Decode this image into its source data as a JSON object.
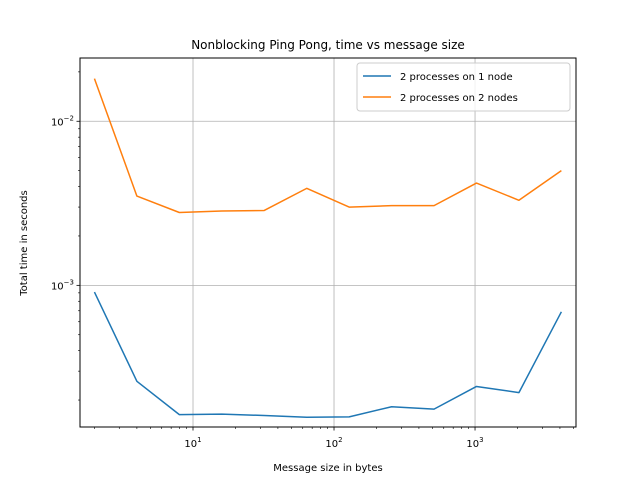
{
  "chart_data": {
    "type": "line",
    "title": "Nonblocking Ping Pong, time vs message size",
    "xlabel": "Message size in bytes",
    "ylabel": "Total time in seconds",
    "x_scale": "log",
    "y_scale": "log",
    "xlim": [
      1.58,
      5200
    ],
    "ylim": [
      0.000137,
      0.0243
    ],
    "x_ticks": [
      {
        "value": 10,
        "label": "10^1"
      },
      {
        "value": 100,
        "label": "10^2"
      },
      {
        "value": 1000,
        "label": "10^3"
      }
    ],
    "y_ticks": [
      {
        "value": 0.001,
        "label": "10^-3"
      },
      {
        "value": 0.01,
        "label": "10^-2"
      }
    ],
    "grid": true,
    "legend_position": "top-right",
    "x": [
      2,
      4,
      8,
      16,
      32,
      64,
      128,
      256,
      512,
      1024,
      2048,
      4096
    ],
    "series": [
      {
        "name": "2 processes on 1 node",
        "color": "#1f77b4",
        "values": [
          0.00091,
          0.00026,
          0.000163,
          0.000164,
          0.000161,
          0.000157,
          0.000158,
          0.000182,
          0.000176,
          0.000242,
          0.000222,
          0.00069
        ]
      },
      {
        "name": "2 processes on 2 nodes",
        "color": "#ff7f0e",
        "values": [
          0.0182,
          0.0035,
          0.00278,
          0.00284,
          0.00286,
          0.0039,
          0.003,
          0.00306,
          0.00306,
          0.0042,
          0.0033,
          0.005
        ]
      }
    ]
  }
}
